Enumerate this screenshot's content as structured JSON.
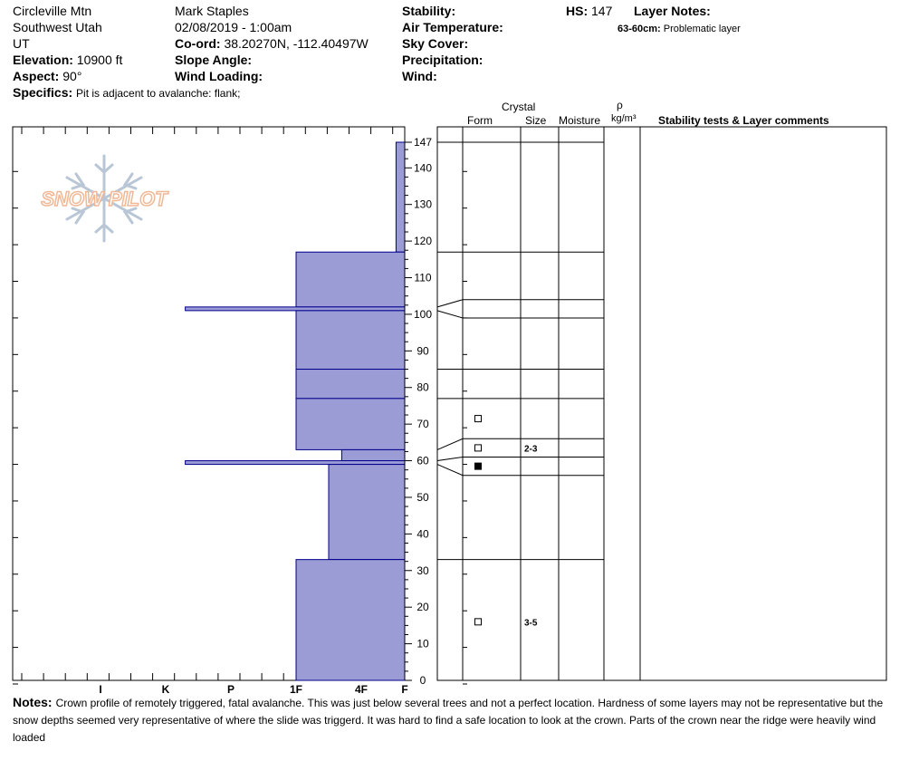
{
  "header": {
    "location": "Circleville Mtn",
    "region": "Southwest Utah",
    "state": "UT",
    "elevation_label": "Elevation:",
    "elevation_value": "10900 ft",
    "aspect_label": "Aspect:",
    "aspect_value": "90°",
    "specifics_label": "Specifics:",
    "specifics_value": "Pit is adjacent to avalanche: flank;",
    "observer": "Mark Staples",
    "datetime": "02/08/2019 - 1:00am",
    "coord_label": "Co-ord:",
    "coord_value": "38.20270N, -112.40497W",
    "slope_label": "Slope Angle:",
    "wind_loading_label": "Wind Loading:",
    "stability_label": "Stability:",
    "air_temp_label": "Air Temperature:",
    "sky_label": "Sky Cover:",
    "precip_label": "Precipitation:",
    "wind_label": "Wind:",
    "hs_label": "HS:",
    "hs_value": "147",
    "layer_notes_label": "Layer Notes:",
    "layer_note_depth": "63-60cm:",
    "layer_note_text": "Problematic layer"
  },
  "logo": {
    "text": "SNOW PILOT"
  },
  "columns": {
    "crystal": "Crystal",
    "form": "Form",
    "size": "Size",
    "moisture": "Moisture",
    "rho": "ρ",
    "density_unit": "kg/m³",
    "stability_comments": "Stability tests & Layer comments"
  },
  "notes": {
    "label": "Notes:",
    "text": "Crown profile of remotely triggered, fatal avalanche. This was just below several trees and not a perfect location. Hardness of some layers may not be representative but the snow depths seemed very representative of where the slide was triggerd. It was hard to find a safe location to look at the crown. Parts of the crown near the ridge were heavily wind loaded"
  },
  "chart_data": {
    "type": "bar",
    "title": "",
    "xlabel": "",
    "ylabel": "",
    "ylim": [
      0,
      147
    ],
    "y_ticks": [
      0,
      10,
      20,
      30,
      40,
      50,
      60,
      70,
      80,
      90,
      100,
      110,
      120,
      130,
      140,
      147
    ],
    "hardness_scale": [
      "I",
      "K",
      "P",
      "1F",
      "4F",
      "F"
    ],
    "hardness_scale_note": "values: F=0, 4F=1, 1F=2, P=3, K=4, I=5",
    "colors": {
      "layer_fill": "#9b9bd6",
      "layer_stroke": "#00008b",
      "grid": "#000000"
    },
    "layers": [
      {
        "top": 147,
        "bottom": 117,
        "hardness": 0.2
      },
      {
        "top": 117,
        "bottom": 102,
        "hardness": 2
      },
      {
        "top": 102,
        "bottom": 101,
        "hardness": 3.7
      },
      {
        "top": 101,
        "bottom": 85,
        "hardness": 2
      },
      {
        "top": 85,
        "bottom": 77,
        "hardness": 2
      },
      {
        "top": 77,
        "bottom": 63,
        "hardness": 2
      },
      {
        "top": 63,
        "bottom": 60,
        "hardness": 1.3
      },
      {
        "top": 60,
        "bottom": 59,
        "hardness": 3.7
      },
      {
        "top": 59,
        "bottom": 33,
        "hardness": 1.5
      },
      {
        "top": 33,
        "bottom": 0,
        "hardness": 2
      }
    ],
    "layer_boundaries_right": [
      {
        "left": 147,
        "right": 147
      },
      {
        "left": 117,
        "right": 117
      },
      {
        "left": 102,
        "right": 104
      },
      {
        "left": 101,
        "right": 99
      },
      {
        "left": 85,
        "right": 85
      },
      {
        "left": 77,
        "right": 77
      },
      {
        "left": 63,
        "right": 66
      },
      {
        "left": 60,
        "right": 61
      },
      {
        "left": 59,
        "right": 56
      },
      {
        "left": 33,
        "right": 33
      }
    ],
    "crystals": [
      {
        "depth": 71.5,
        "form": "open-square",
        "size": ""
      },
      {
        "depth": 63.5,
        "form": "open-square",
        "size": "2-3"
      },
      {
        "depth": 58.5,
        "form": "filled-square",
        "size": ""
      },
      {
        "depth": 16,
        "form": "open-square",
        "size": "3-5"
      }
    ]
  }
}
